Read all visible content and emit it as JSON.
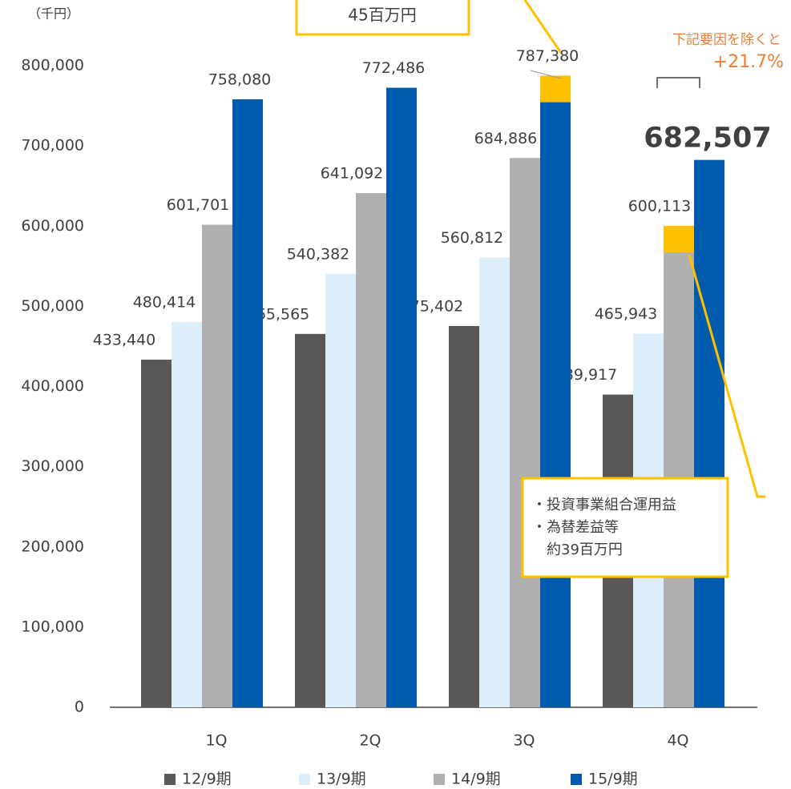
{
  "chart_data": {
    "type": "bar",
    "unit_label": "（千円）",
    "categories": [
      "1Q",
      "2Q",
      "3Q",
      "4Q"
    ],
    "series": [
      {
        "name": "12/9期",
        "color": "#595757",
        "values": [
          433440,
          465565,
          475402,
          389917
        ],
        "value_labels": [
          "433,440",
          "465,565",
          "475,402",
          "389,917"
        ]
      },
      {
        "name": "13/9期",
        "color": "#ddeefb",
        "values": [
          480414,
          540382,
          560812,
          465943
        ],
        "value_labels": [
          "480,414",
          "540,382",
          "560,812",
          "465,943"
        ]
      },
      {
        "name": "14/9期",
        "color": "#b0b0b0",
        "values": [
          601701,
          641092,
          684886,
          600113
        ],
        "value_labels": [
          "601,701",
          "641,092",
          "684,886",
          "600,113"
        ]
      },
      {
        "name": "15/9期",
        "color": "#005bac",
        "values": [
          758080,
          772486,
          787380,
          682507
        ],
        "value_labels": [
          "758,080",
          "772,486",
          "787,380",
          "682,507"
        ]
      }
    ],
    "highlights": [
      {
        "category": 2,
        "series": 3,
        "value": 33000,
        "color": "#ffc000"
      },
      {
        "category": 3,
        "series": 2,
        "value": 33000,
        "color": "#ffc000"
      }
    ],
    "ylim": [
      0,
      800000
    ],
    "yticks": [
      0,
      {
        "value": 100000,
        "label": "100,000"
      },
      {
        "value": 200000,
        "label": "200,000"
      },
      {
        "value": 300000,
        "label": "300,000"
      },
      {
        "value": 400000,
        "label": "400,000"
      },
      {
        "value": 500000,
        "label": "500,000"
      },
      {
        "value": 600000,
        "label": "600,000"
      },
      {
        "value": 700000,
        "label": "700,000"
      },
      {
        "value": 800000,
        "label": "800,000"
      }
    ],
    "annotations": {
      "top_box": "45百万円",
      "note_title": "下記要因を除くと",
      "note_value": "+21.7%",
      "box_lines": [
        "・投資事業組合運用益",
        "・為替差益等",
        "　約39百万円"
      ]
    }
  }
}
